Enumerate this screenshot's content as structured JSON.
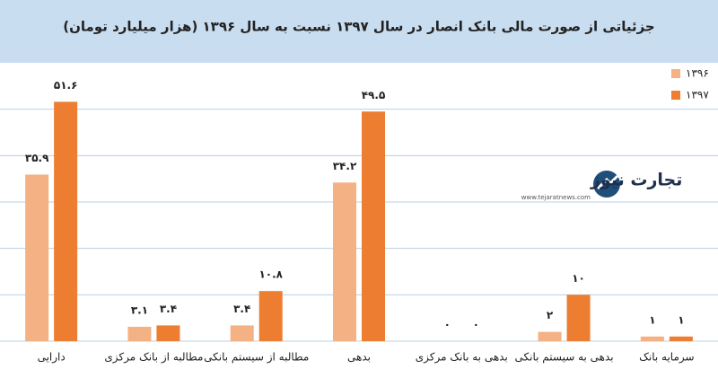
{
  "chart_data": {
    "type": "bar",
    "title": "جزئیاتی از صورت مالی بانک انصار در سال ۱۳۹۷ نسبت به سال ۱۳۹۶ (هزار میلیارد تومان)",
    "categories": [
      "دارایی",
      "مطالبه از بانک مرکزی",
      "مطالبه از سیستم بانکی",
      "بدهی",
      "بدهی به بانک مرکزی",
      "بدهی به سیستم بانکی",
      "سرمایه بانک"
    ],
    "series": [
      {
        "name": "۱۳۹۶",
        "color": "#f4b183",
        "values": [
          35.9,
          3.1,
          3.4,
          34.2,
          0,
          2,
          1
        ],
        "value_labels": [
          "۳۵.۹",
          "۳.۱",
          "۳.۴",
          "۳۴.۲",
          "۰",
          "۲",
          "۱"
        ]
      },
      {
        "name": "۱۳۹۷",
        "color": "#ed7d31",
        "values": [
          51.6,
          3.4,
          10.8,
          49.5,
          0,
          10,
          1
        ],
        "value_labels": [
          "۵۱.۶",
          "۳.۴",
          "۱۰.۸",
          "۴۹.۵",
          "۰",
          "۱۰",
          "۱"
        ]
      }
    ],
    "ylim": [
      0,
      60
    ],
    "yticks": [
      0,
      10,
      20,
      30,
      40,
      50
    ],
    "grid": true,
    "legend": "top-right",
    "watermark": {
      "name": "تجارت نیوز",
      "url": "www.tejaratnews.com"
    }
  }
}
